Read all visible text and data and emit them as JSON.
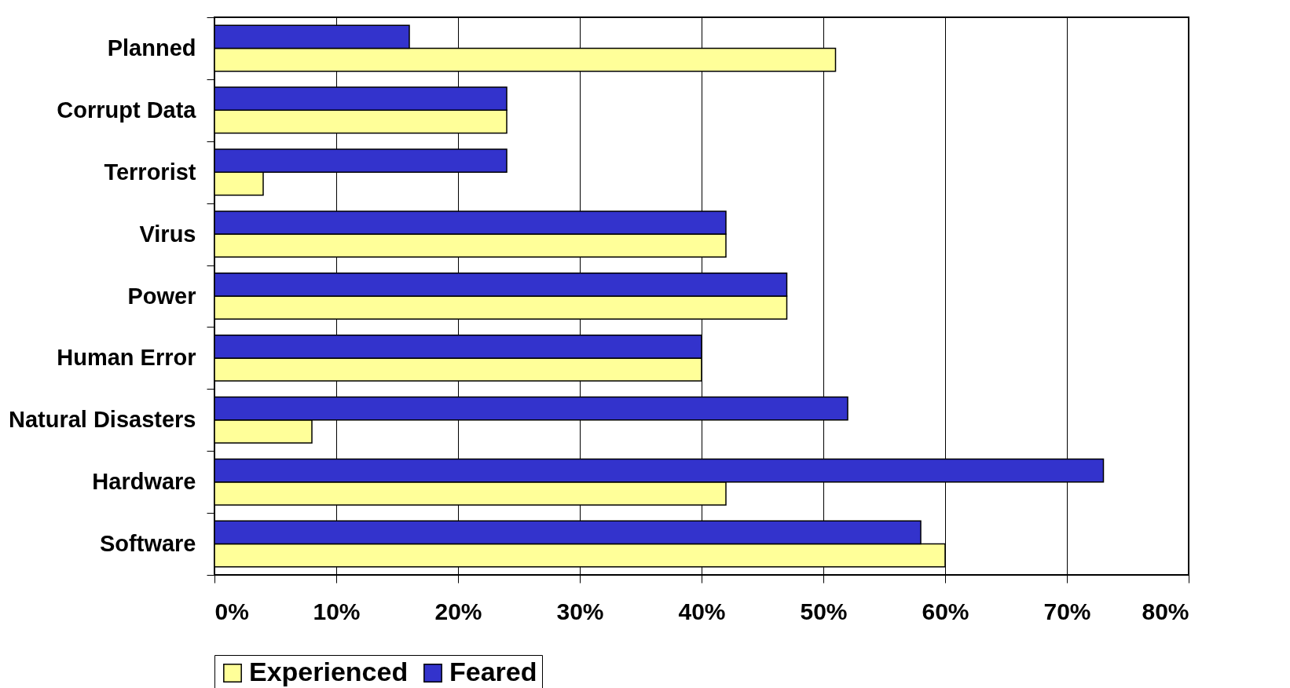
{
  "chart_data": {
    "type": "bar",
    "orientation": "horizontal",
    "categories": [
      "Planned",
      "Corrupt Data",
      "Terrorist",
      "Virus",
      "Power",
      "Human Error",
      "Natural Disasters",
      "Hardware",
      "Software"
    ],
    "series": [
      {
        "name": "Experienced",
        "color": "#ffff99",
        "values": [
          51,
          24,
          4,
          42,
          47,
          40,
          8,
          42,
          60
        ]
      },
      {
        "name": "Feared",
        "color": "#3333cc",
        "values": [
          16,
          24,
          24,
          42,
          47,
          40,
          52,
          73,
          58
        ]
      }
    ],
    "xlim": [
      0,
      80
    ],
    "xticks": [
      {
        "value": 0,
        "label": "0%"
      },
      {
        "value": 10,
        "label": "10%"
      },
      {
        "value": 20,
        "label": "20%"
      },
      {
        "value": 30,
        "label": "30%"
      },
      {
        "value": 40,
        "label": "40%"
      },
      {
        "value": 50,
        "label": "50%"
      },
      {
        "value": 60,
        "label": "60%"
      },
      {
        "value": 70,
        "label": "70%"
      },
      {
        "value": 80,
        "label": "80%"
      }
    ],
    "grid": "x",
    "legend": "bottom"
  }
}
